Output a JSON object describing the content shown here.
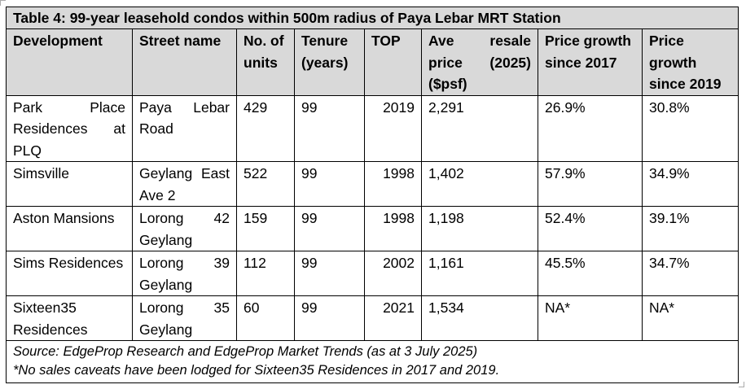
{
  "table": {
    "title": "Table 4: 99-year leasehold condos within 500m radius of Paya Lebar MRT Station",
    "headers": {
      "development": "Development",
      "street": "Street name",
      "units": "No. of units",
      "tenure": "Tenure (years)",
      "top": "TOP",
      "price": "Ave resale price (2025) ($psf)",
      "growth2017": "Price growth since 2017",
      "growth2019": "Price growth since 2019"
    },
    "rows": [
      {
        "development": "Park Place Residences at PLQ",
        "street": "Paya Lebar Road",
        "units": "429",
        "tenure": "99",
        "top": "2019",
        "price": "2,291",
        "growth2017": "26.9%",
        "growth2019": "30.8%"
      },
      {
        "development": "Simsville",
        "street": "Geylang East Ave 2",
        "units": "522",
        "tenure": "99",
        "top": "1998",
        "price": "1,402",
        "growth2017": "57.9%",
        "growth2019": "34.9%"
      },
      {
        "development": "Aston Mansions",
        "street": "Lorong 42 Geylang",
        "units": "159",
        "tenure": "99",
        "top": "1998",
        "price": "1,198",
        "growth2017": "52.4%",
        "growth2019": "39.1%"
      },
      {
        "development": "Sims Residences",
        "street": "Lorong 39 Geylang",
        "units": "112",
        "tenure": "99",
        "top": "2002",
        "price": "1,161",
        "growth2017": "45.5%",
        "growth2019": "34.7%"
      },
      {
        "development": "Sixteen35 Residences",
        "street": "Lorong 35 Geylang",
        "units": "60",
        "tenure": "99",
        "top": "2021",
        "price": "1,534",
        "growth2017": "NA*",
        "growth2019": "NA*"
      }
    ],
    "source": "Source: EdgeProp Research and EdgeProp Market Trends (as at 3 July 2025)",
    "note": "*No sales caveats have been lodged for Sixteen35 Residences in 2017 and 2019."
  }
}
